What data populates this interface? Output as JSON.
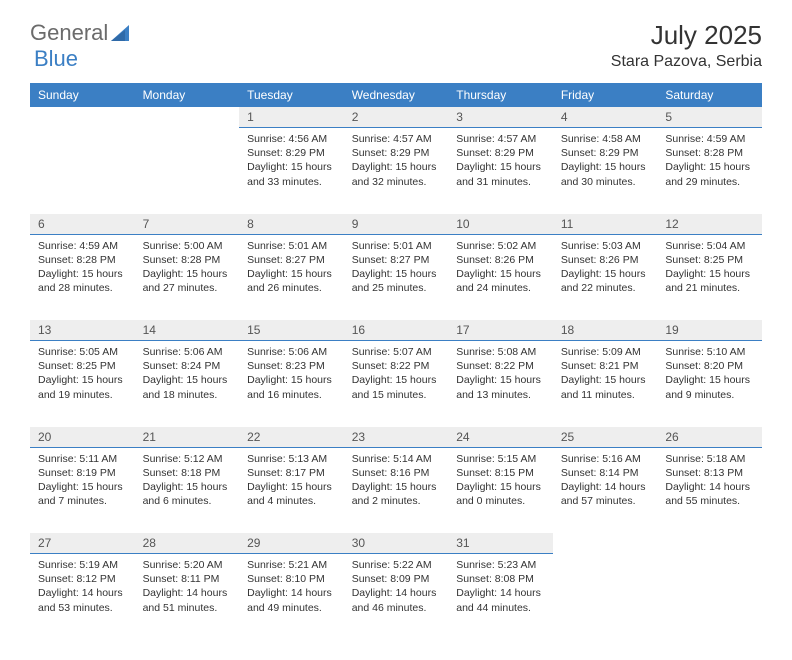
{
  "brand": {
    "general": "General",
    "blue": "Blue"
  },
  "title": "July 2025",
  "location": "Stara Pazova, Serbia",
  "colors": {
    "header_bg": "#3b7fc4",
    "header_text": "#ffffff",
    "daynum_bg": "#eeeeee",
    "daynum_text": "#555555",
    "daynum_border": "#3b7fc4",
    "body_text": "#333333",
    "logo_gray": "#6b6b6b",
    "logo_blue": "#3b7fc4",
    "page_bg": "#ffffff"
  },
  "typography": {
    "font_family": "Arial, Helvetica, sans-serif",
    "title_size_pt": 20,
    "location_size_pt": 12,
    "weekday_size_pt": 9,
    "daynum_size_pt": 9,
    "cell_size_pt": 8
  },
  "weekdays": [
    "Sunday",
    "Monday",
    "Tuesday",
    "Wednesday",
    "Thursday",
    "Friday",
    "Saturday"
  ],
  "weeks": [
    [
      null,
      null,
      {
        "n": "1",
        "sr": "4:56 AM",
        "ss": "8:29 PM",
        "dl": "15 hours and 33 minutes."
      },
      {
        "n": "2",
        "sr": "4:57 AM",
        "ss": "8:29 PM",
        "dl": "15 hours and 32 minutes."
      },
      {
        "n": "3",
        "sr": "4:57 AM",
        "ss": "8:29 PM",
        "dl": "15 hours and 31 minutes."
      },
      {
        "n": "4",
        "sr": "4:58 AM",
        "ss": "8:29 PM",
        "dl": "15 hours and 30 minutes."
      },
      {
        "n": "5",
        "sr": "4:59 AM",
        "ss": "8:28 PM",
        "dl": "15 hours and 29 minutes."
      }
    ],
    [
      {
        "n": "6",
        "sr": "4:59 AM",
        "ss": "8:28 PM",
        "dl": "15 hours and 28 minutes."
      },
      {
        "n": "7",
        "sr": "5:00 AM",
        "ss": "8:28 PM",
        "dl": "15 hours and 27 minutes."
      },
      {
        "n": "8",
        "sr": "5:01 AM",
        "ss": "8:27 PM",
        "dl": "15 hours and 26 minutes."
      },
      {
        "n": "9",
        "sr": "5:01 AM",
        "ss": "8:27 PM",
        "dl": "15 hours and 25 minutes."
      },
      {
        "n": "10",
        "sr": "5:02 AM",
        "ss": "8:26 PM",
        "dl": "15 hours and 24 minutes."
      },
      {
        "n": "11",
        "sr": "5:03 AM",
        "ss": "8:26 PM",
        "dl": "15 hours and 22 minutes."
      },
      {
        "n": "12",
        "sr": "5:04 AM",
        "ss": "8:25 PM",
        "dl": "15 hours and 21 minutes."
      }
    ],
    [
      {
        "n": "13",
        "sr": "5:05 AM",
        "ss": "8:25 PM",
        "dl": "15 hours and 19 minutes."
      },
      {
        "n": "14",
        "sr": "5:06 AM",
        "ss": "8:24 PM",
        "dl": "15 hours and 18 minutes."
      },
      {
        "n": "15",
        "sr": "5:06 AM",
        "ss": "8:23 PM",
        "dl": "15 hours and 16 minutes."
      },
      {
        "n": "16",
        "sr": "5:07 AM",
        "ss": "8:22 PM",
        "dl": "15 hours and 15 minutes."
      },
      {
        "n": "17",
        "sr": "5:08 AM",
        "ss": "8:22 PM",
        "dl": "15 hours and 13 minutes."
      },
      {
        "n": "18",
        "sr": "5:09 AM",
        "ss": "8:21 PM",
        "dl": "15 hours and 11 minutes."
      },
      {
        "n": "19",
        "sr": "5:10 AM",
        "ss": "8:20 PM",
        "dl": "15 hours and 9 minutes."
      }
    ],
    [
      {
        "n": "20",
        "sr": "5:11 AM",
        "ss": "8:19 PM",
        "dl": "15 hours and 7 minutes."
      },
      {
        "n": "21",
        "sr": "5:12 AM",
        "ss": "8:18 PM",
        "dl": "15 hours and 6 minutes."
      },
      {
        "n": "22",
        "sr": "5:13 AM",
        "ss": "8:17 PM",
        "dl": "15 hours and 4 minutes."
      },
      {
        "n": "23",
        "sr": "5:14 AM",
        "ss": "8:16 PM",
        "dl": "15 hours and 2 minutes."
      },
      {
        "n": "24",
        "sr": "5:15 AM",
        "ss": "8:15 PM",
        "dl": "15 hours and 0 minutes."
      },
      {
        "n": "25",
        "sr": "5:16 AM",
        "ss": "8:14 PM",
        "dl": "14 hours and 57 minutes."
      },
      {
        "n": "26",
        "sr": "5:18 AM",
        "ss": "8:13 PM",
        "dl": "14 hours and 55 minutes."
      }
    ],
    [
      {
        "n": "27",
        "sr": "5:19 AM",
        "ss": "8:12 PM",
        "dl": "14 hours and 53 minutes."
      },
      {
        "n": "28",
        "sr": "5:20 AM",
        "ss": "8:11 PM",
        "dl": "14 hours and 51 minutes."
      },
      {
        "n": "29",
        "sr": "5:21 AM",
        "ss": "8:10 PM",
        "dl": "14 hours and 49 minutes."
      },
      {
        "n": "30",
        "sr": "5:22 AM",
        "ss": "8:09 PM",
        "dl": "14 hours and 46 minutes."
      },
      {
        "n": "31",
        "sr": "5:23 AM",
        "ss": "8:08 PM",
        "dl": "14 hours and 44 minutes."
      },
      null,
      null
    ]
  ],
  "labels": {
    "sunrise": "Sunrise:",
    "sunset": "Sunset:",
    "daylight": "Daylight:"
  }
}
